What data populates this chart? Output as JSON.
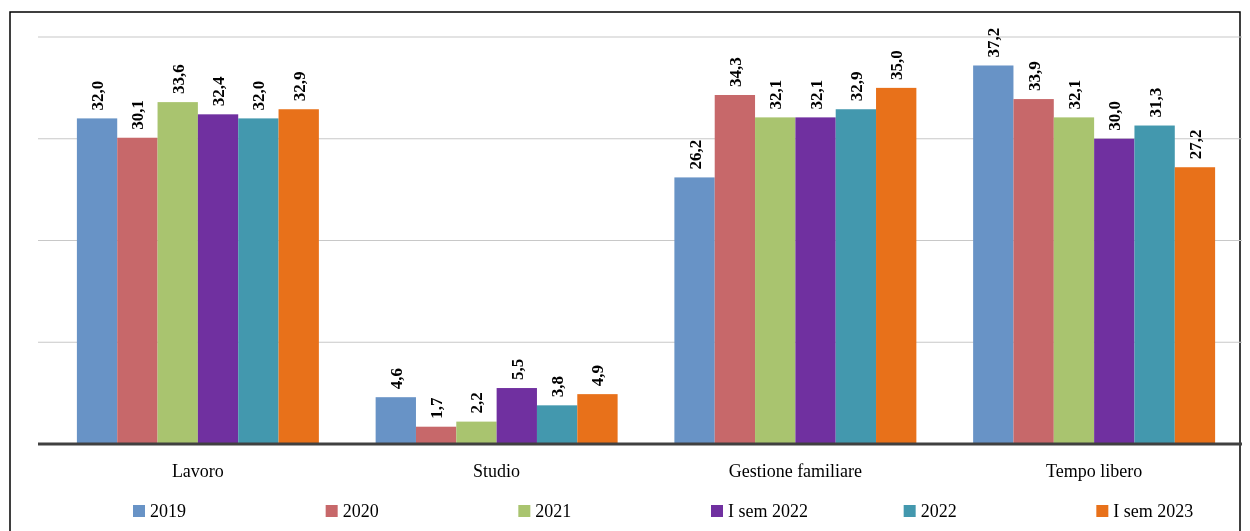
{
  "chart_data": {
    "type": "bar",
    "categories": [
      "Lavoro",
      "Studio",
      "Gestione familiare",
      "Tempo libero"
    ],
    "ylim": [
      0,
      40
    ],
    "yticks": [
      {
        "value": 0,
        "label": null
      },
      {
        "value": 10,
        "label": null
      },
      {
        "value": 20,
        "label": null
      },
      {
        "value": 30,
        "label": null
      },
      {
        "value": 40,
        "label": null
      }
    ],
    "tick_labels": "x",
    "grid": "y",
    "legend": "bottom",
    "series": [
      {
        "name": "2019",
        "color": "#6893c6",
        "values": [
          32.0,
          4.6,
          26.2,
          37.2
        ],
        "value_labels": [
          "32,0",
          "4,6",
          "26,2",
          "37,2"
        ]
      },
      {
        "name": "2020",
        "color": "#c7686a",
        "values": [
          30.1,
          1.7,
          34.3,
          33.9
        ],
        "value_labels": [
          "30,1",
          "1,7",
          "34,3",
          "33,9"
        ]
      },
      {
        "name": "2021",
        "color": "#a9c46f",
        "values": [
          33.6,
          2.2,
          32.1,
          32.1
        ],
        "value_labels": [
          "33,6",
          "2,2",
          "32,1",
          "32,1"
        ]
      },
      {
        "name": "I sem 2022",
        "color": "#7030a0",
        "values": [
          32.4,
          5.5,
          32.1,
          30.0
        ],
        "value_labels": [
          "32,4",
          "5,5",
          "32,1",
          "30,0"
        ]
      },
      {
        "name": "2022",
        "color": "#4398ae",
        "values": [
          32.0,
          3.8,
          32.9,
          31.3
        ],
        "value_labels": [
          "32,0",
          "3,8",
          "32,9",
          "31,3"
        ]
      },
      {
        "name": "I sem 2023",
        "color": "#e8711a",
        "values": [
          32.9,
          4.9,
          35.0,
          27.2
        ],
        "value_labels": [
          "32,9",
          "4,9",
          "35,0",
          "27,2"
        ]
      }
    ]
  }
}
